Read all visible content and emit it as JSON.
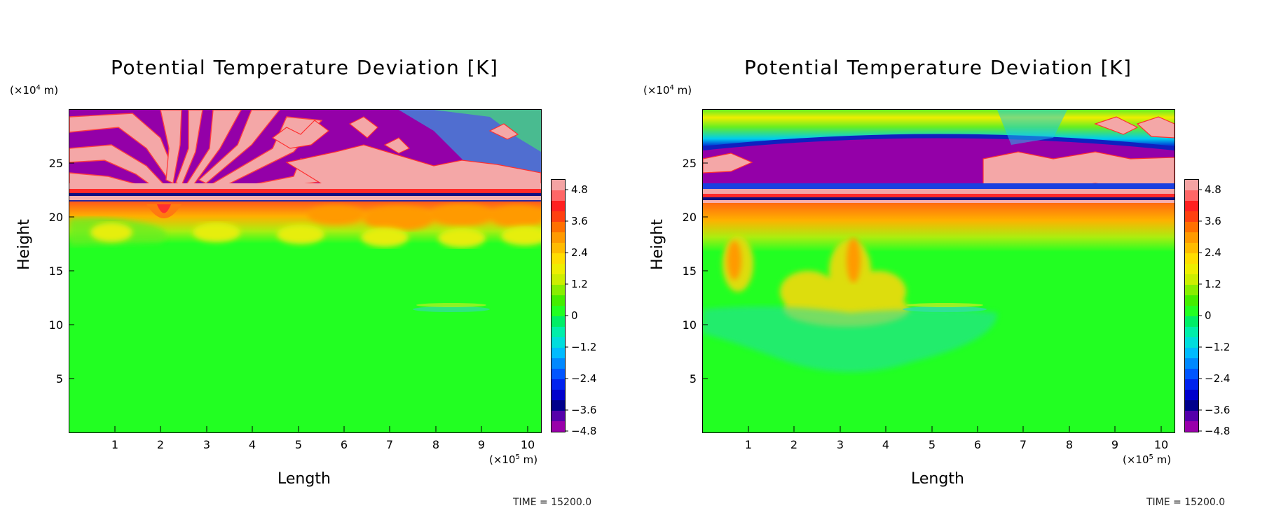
{
  "panels": [
    {
      "title": "Potential Temperature Deviation [K]",
      "y_unit_prefix": "(×10",
      "y_unit_exp": "4",
      "y_unit_suffix": " m)",
      "ylabel": "Height",
      "xlabel": "Length",
      "x_unit_prefix": "(×10",
      "x_unit_exp": "5",
      "x_unit_suffix": " m)",
      "time_label": "TIME = 15200.0"
    },
    {
      "title": "Potential Temperature Deviation [K]",
      "y_unit_prefix": "(×10",
      "y_unit_exp": "4",
      "y_unit_suffix": " m)",
      "ylabel": "Height",
      "xlabel": "Length",
      "x_unit_prefix": "(×10",
      "x_unit_exp": "5",
      "x_unit_suffix": " m)",
      "time_label": "TIME = 15200.0"
    }
  ],
  "chart_data": [
    {
      "type": "heatmap",
      "title": "Potential Temperature Deviation [K]",
      "xlabel": "Length",
      "ylabel": "Height",
      "x_unit": "×10^5 m",
      "y_unit": "×10^4 m",
      "xlim": [
        0,
        10.3
      ],
      "ylim": [
        0,
        30
      ],
      "x_ticks": [
        1,
        2,
        3,
        4,
        5,
        6,
        7,
        8,
        9,
        10
      ],
      "y_ticks": [
        5,
        10,
        15,
        20,
        25
      ],
      "colorbar": {
        "range": [
          -4.8,
          4.8
        ],
        "ticks": [
          -4.8,
          -3.6,
          -2.4,
          -1.2,
          0,
          1.2,
          2.4,
          3.6,
          4.8
        ],
        "tick_labels": [
          "−4.8",
          "−3.6",
          "−2.4",
          "−1.2",
          "0",
          "1.2",
          "2.4",
          "3.6",
          "4.8"
        ]
      },
      "grid": false,
      "time": "15200.0"
    },
    {
      "type": "heatmap",
      "title": "Potential Temperature Deviation [K]",
      "xlabel": "Length",
      "ylabel": "Height",
      "x_unit": "×10^5 m",
      "y_unit": "×10^4 m",
      "xlim": [
        0,
        10.3
      ],
      "ylim": [
        0,
        30
      ],
      "x_ticks": [
        1,
        2,
        3,
        4,
        5,
        6,
        7,
        8,
        9,
        10
      ],
      "y_ticks": [
        5,
        10,
        15,
        20,
        25
      ],
      "colorbar": {
        "range": [
          -4.8,
          4.8
        ],
        "ticks": [
          -4.8,
          -3.6,
          -2.4,
          -1.2,
          0,
          1.2,
          2.4,
          3.6,
          4.8
        ],
        "tick_labels": [
          "−4.8",
          "−3.6",
          "−2.4",
          "−1.2",
          "0",
          "1.2",
          "2.4",
          "3.6",
          "4.8"
        ]
      },
      "grid": false,
      "time": "15200.0"
    }
  ],
  "colors": {
    "max_pink": "#f5a3a3",
    "red": "#ff2020",
    "orange": "#ffaa00",
    "yellow": "#eeee00",
    "green": "#22ff22",
    "cyan": "#00dddd",
    "blue": "#0044ff",
    "navy": "#00008b",
    "min_purple": "#9900aa"
  }
}
